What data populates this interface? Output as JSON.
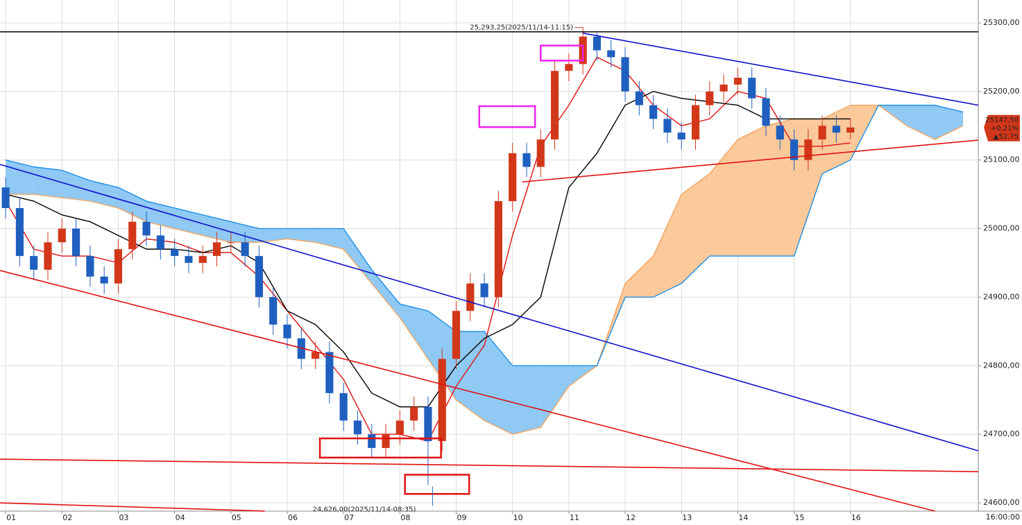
{
  "chart_data": {
    "type": "candlestick",
    "x": [
      1,
      1.25,
      1.5,
      1.75,
      2,
      2.25,
      2.5,
      2.75,
      3,
      3.25,
      3.5,
      3.75,
      4,
      4.25,
      4.5,
      4.75,
      5,
      5.25,
      5.5,
      5.75,
      6,
      6.25,
      6.5,
      6.75,
      7,
      7.25,
      7.5,
      7.75,
      8,
      8.25,
      8.5,
      8.75,
      9,
      9.25,
      9.5,
      9.75,
      10,
      10.25,
      10.5,
      10.75,
      11,
      11.25,
      11.5,
      11.75,
      12,
      12.25,
      12.5,
      12.75,
      13,
      13.25,
      13.5,
      13.75,
      14,
      14.25,
      14.5,
      14.75,
      15,
      15.25,
      15.5,
      15.75,
      16
    ],
    "open": [
      25060,
      25030,
      24960,
      24940,
      24980,
      25000,
      24960,
      24930,
      24920,
      24970,
      25010,
      24990,
      24970,
      24960,
      24950,
      24960,
      24980,
      24980,
      24960,
      24900,
      24860,
      24840,
      24810,
      24820,
      24760,
      24720,
      24700,
      24680,
      24700,
      24720,
      24740,
      24690,
      24810,
      24880,
      24920,
      24900,
      25040,
      25110,
      25090,
      25130,
      25230,
      25240,
      25280,
      25260,
      25250,
      25200,
      25180,
      25160,
      25140,
      25130,
      25180,
      25200,
      25210,
      25220,
      25190,
      25150,
      25130,
      25100,
      25130,
      25150,
      25140
    ],
    "high": [
      25075,
      25045,
      24975,
      24995,
      25015,
      25015,
      24975,
      24945,
      24985,
      25025,
      25025,
      25005,
      24985,
      24975,
      24975,
      24995,
      24995,
      24995,
      24975,
      24915,
      24875,
      24855,
      24835,
      24835,
      24775,
      24735,
      24715,
      24715,
      24735,
      24755,
      24755,
      24825,
      24895,
      24935,
      24935,
      25055,
      25125,
      25125,
      25145,
      25245,
      25255,
      25293.25,
      25285,
      25275,
      25265,
      25215,
      25195,
      25175,
      25155,
      25195,
      25215,
      25225,
      25235,
      25235,
      25205,
      25165,
      25145,
      25145,
      25165,
      25165,
      25160
    ],
    "low": [
      25015,
      24945,
      24925,
      24925,
      24965,
      24945,
      24915,
      24905,
      24905,
      24955,
      24975,
      24955,
      24945,
      24935,
      24935,
      24945,
      24965,
      24945,
      24885,
      24845,
      24825,
      24795,
      24795,
      24745,
      24705,
      24685,
      24665,
      24665,
      24685,
      24705,
      24626,
      24675,
      24795,
      24865,
      24885,
      24885,
      25025,
      25075,
      25075,
      25115,
      25215,
      25225,
      25245,
      25235,
      25185,
      25165,
      25145,
      25125,
      25115,
      25115,
      25165,
      25185,
      25195,
      25175,
      25135,
      25115,
      25085,
      25085,
      25115,
      25125,
      25130
    ],
    "close": [
      25030,
      24960,
      24940,
      24980,
      25000,
      24960,
      24930,
      24920,
      24970,
      25010,
      24990,
      24970,
      24960,
      24950,
      24960,
      24980,
      24980,
      24960,
      24900,
      24860,
      24840,
      24810,
      24820,
      24760,
      24720,
      24700,
      24680,
      24700,
      24720,
      24740,
      24690,
      24810,
      24880,
      24920,
      24900,
      25040,
      25110,
      25090,
      25130,
      25230,
      25240,
      25280,
      25260,
      25250,
      25200,
      25180,
      25160,
      25140,
      25130,
      25180,
      25200,
      25210,
      25220,
      25190,
      25150,
      25130,
      25100,
      25130,
      25150,
      25140,
      25147.5
    ],
    "up_color": "#d2371a",
    "down_color": "#1f5fbf",
    "lines": [
      {
        "color": "#e01010",
        "x": [
          1,
          1.5,
          2,
          2.5,
          3,
          3.5,
          4,
          4.5,
          5,
          5.5,
          6,
          6.5,
          7,
          7.5,
          8,
          8.5,
          9,
          9.5,
          10,
          10.5,
          11,
          11.5,
          12,
          12.5,
          13,
          13.5,
          14,
          14.5,
          15,
          15.5,
          16
        ],
        "values": [
          25040,
          24970,
          24960,
          24960,
          24950,
          24985,
          24980,
          24965,
          24965,
          24930,
          24880,
          24830,
          24780,
          24700,
          24700,
          24690,
          24770,
          24830,
          24990,
          25120,
          25180,
          25250,
          25230,
          25180,
          25150,
          25160,
          25200,
          25190,
          25120,
          25120,
          25125
        ]
      },
      {
        "color": "#000000",
        "x": [
          1,
          1.5,
          2,
          2.5,
          3,
          3.5,
          4,
          4.5,
          5,
          5.5,
          6,
          6.5,
          7,
          7.5,
          8,
          8.5,
          9,
          9.5,
          10,
          10.5,
          11,
          11.5,
          12,
          12.5,
          13,
          13.5,
          14,
          14.5,
          15,
          15.5,
          16
        ],
        "values": [
          25050,
          25040,
          25020,
          25010,
          24990,
          24970,
          24970,
          24965,
          24975,
          24950,
          24880,
          24860,
          24820,
          24760,
          24740,
          24740,
          24800,
          24840,
          24860,
          24900,
          25060,
          25110,
          25180,
          25200,
          25190,
          25185,
          25180,
          25160,
          25160,
          25160,
          25160
        ]
      }
    ],
    "cloud": {
      "x": [
        1,
        1.5,
        2,
        2.5,
        3,
        3.5,
        4,
        4.5,
        5,
        5.5,
        6,
        6.5,
        7,
        7.5,
        8,
        8.5,
        9,
        9.5,
        10,
        10.5,
        11,
        11.5,
        12,
        12.5,
        13,
        13.5,
        14,
        14.5,
        15,
        15.5,
        16,
        16.5,
        17,
        17.5,
        18
      ],
      "span_a": [
        25050,
        25050,
        25045,
        25040,
        25030,
        25010,
        25000,
        24990,
        24980,
        24980,
        24985,
        24980,
        24970,
        24920,
        24870,
        24810,
        24750,
        24720,
        24700,
        24710,
        24770,
        24800,
        24920,
        24960,
        25050,
        25080,
        25130,
        25150,
        25160,
        25160,
        25180,
        25180,
        25150,
        25130,
        25150
      ],
      "span_b": [
        25100,
        25090,
        25085,
        25070,
        25060,
        25040,
        25030,
        25020,
        25010,
        25000,
        25000,
        25000,
        25000,
        24940,
        24890,
        24880,
        24850,
        24850,
        24800,
        24800,
        24800,
        24800,
        24900,
        24900,
        24920,
        24960,
        24960,
        24960,
        24960,
        25080,
        25100,
        25180,
        25180,
        25180,
        25170
      ],
      "span_a_color": "#f4a460",
      "span_b_color": "#1e8fe6",
      "a_fill": "#fbc99a",
      "b_fill": "#8fc9f4"
    },
    "trend_lines": [
      {
        "color": "#000000",
        "x": [
          0.9,
          18.27
        ],
        "values": [
          25287,
          25287
        ]
      },
      {
        "color": "#1010c8",
        "x": [
          11.25,
          18.27
        ],
        "values": [
          25285,
          25180
        ]
      },
      {
        "color": "#1010c8",
        "x": [
          0.9,
          18.27
        ],
        "values": [
          25093.6,
          24675.9
        ]
      },
      {
        "color": "#e01010",
        "x": [
          0.9,
          17.5
        ],
        "values": [
          24938.9,
          24587.9
        ]
      },
      {
        "color": "#e01010",
        "x": [
          0.9,
          18.27
        ],
        "values": [
          24663.7,
          24645.5
        ]
      },
      {
        "color": "#e01010",
        "x": [
          0.9,
          5.6
        ],
        "values": [
          24600,
          24588
        ]
      },
      {
        "color": "#e01010",
        "x": [
          10.17,
          18.27
        ],
        "values": [
          25068,
          25129
        ]
      }
    ],
    "boxes": [
      {
        "color": "#ee22ee",
        "x": [
          10.5,
          11.25
        ],
        "values": [
          25245,
          25267
        ]
      },
      {
        "color": "#ee22ee",
        "x": [
          9.41,
          10.4
        ],
        "values": [
          25148,
          25178.6
        ]
      },
      {
        "color": "#e01010",
        "x": [
          6.58,
          8.73
        ],
        "values": [
          24666,
          24694
        ]
      },
      {
        "color": "#e01010",
        "x": [
          8.09,
          9.23
        ],
        "values": [
          24613,
          24641
        ]
      }
    ],
    "high_label": {
      "text": "25,293,25(2025/11/14-11:15)",
      "x": 11.25,
      "value": 25293.25,
      "color": "#c0392b"
    },
    "low_label": {
      "text": "24,626,00(2025/11/14-08:35)",
      "x": 8.58,
      "value": 24626,
      "color": "#1f6fbf"
    },
    "last_price": {
      "value": 25147.5,
      "lines": [
        "25147,50",
        "+0,21%",
        "▲52,75"
      ],
      "color": "#d2371a"
    },
    "xlim": [
      0.9,
      18.27
    ],
    "ylim": [
      24587.9,
      25333.4
    ],
    "xticks": [
      {
        "value": 1,
        "label": "01"
      },
      {
        "value": 2,
        "label": "02"
      },
      {
        "value": 3,
        "label": "03"
      },
      {
        "value": 4,
        "label": "04"
      },
      {
        "value": 5,
        "label": "05"
      },
      {
        "value": 6,
        "label": "06"
      },
      {
        "value": 7,
        "label": "07"
      },
      {
        "value": 8,
        "label": "08"
      },
      {
        "value": 9,
        "label": "09"
      },
      10,
      11,
      12,
      13,
      14,
      15,
      16
    ],
    "yticks": [
      {
        "value": 24600,
        "label": "24600,00"
      },
      {
        "value": 24700,
        "label": "24700,00"
      },
      {
        "value": 24800,
        "label": "24800,00"
      },
      {
        "value": 24900,
        "label": "24900,00"
      },
      {
        "value": 25000,
        "label": "25000,00"
      },
      {
        "value": 25100,
        "label": "25100,00"
      },
      {
        "value": 25200,
        "label": "25200,00"
      },
      {
        "value": 25300,
        "label": "25300,00"
      }
    ],
    "time_label": "16:00:00",
    "grid": true
  }
}
